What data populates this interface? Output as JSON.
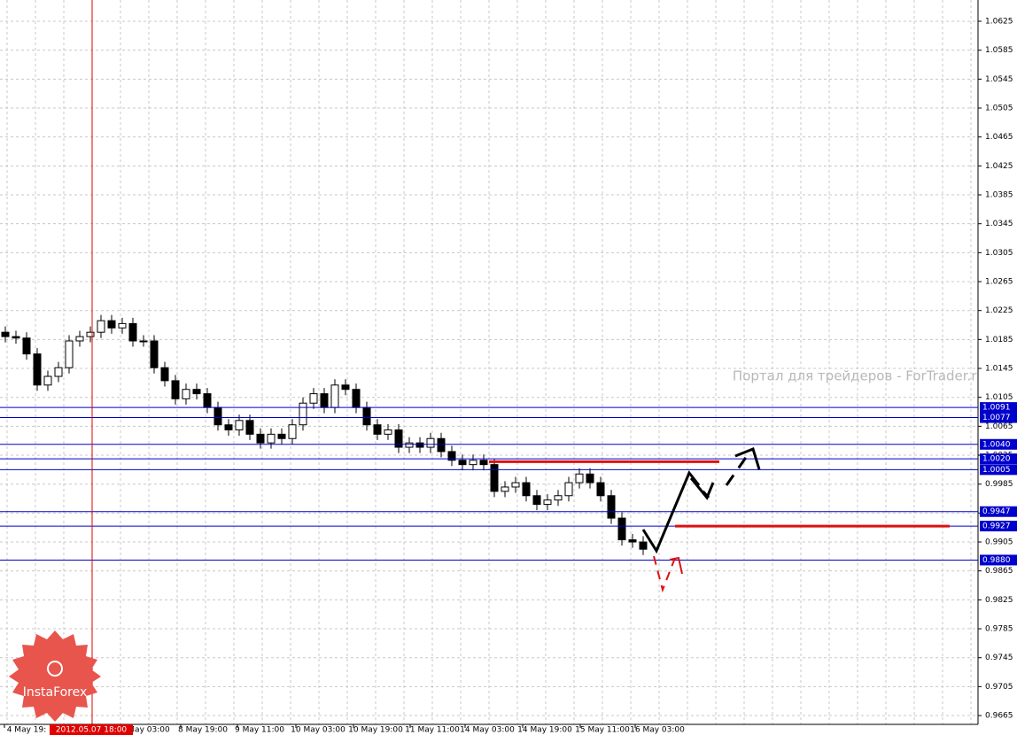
{
  "chart_data": {
    "type": "candlestick",
    "watermark": "Портал для трейдеров - ForTrader.ru",
    "logo": "InstaForex",
    "cursor_label": "2012.05.07 18:00",
    "x_labels": [
      "4 May 19:",
      "May 03:00",
      "8 May 19:00",
      "9 May 11:00",
      "10 May 03:00",
      "10 May 19:00",
      "11 May 11:00",
      "14 May 03:00",
      "14 May 19:00",
      "15 May 11:00",
      "16 May 03:00"
    ],
    "open": [
      1.0195,
      1.0189,
      1.0187,
      1.0165,
      1.0122,
      1.0134,
      1.0146,
      1.0183,
      1.0189,
      1.0195,
      1.0211,
      1.0201,
      1.0207,
      1.0183,
      1.0183,
      1.0146,
      1.0128,
      1.0103,
      1.0116,
      1.011,
      1.0091,
      1.0067,
      1.006,
      1.0073,
      1.0054,
      1.0042,
      1.0054,
      1.0048,
      1.0067,
      1.0097,
      1.011,
      1.0091,
      1.0122,
      1.0116,
      1.0091,
      1.0067,
      1.0054,
      1.006,
      1.0036,
      1.0042,
      1.0036,
      1.0048,
      1.003,
      1.0018,
      1.0012,
      1.0018,
      1.0012,
      0.9975,
      0.9981,
      0.9987,
      0.9969,
      0.9957,
      0.9963,
      0.9969,
      0.9987,
      0.9999,
      0.9987,
      0.9969,
      0.9938,
      0.9908,
      0.9905
    ],
    "high": [
      1.0203,
      1.0197,
      1.0195,
      1.0173,
      1.0142,
      1.0154,
      1.0191,
      1.0197,
      1.0203,
      1.0219,
      1.0219,
      1.0215,
      1.0215,
      1.0191,
      1.0191,
      1.0154,
      1.0136,
      1.0124,
      1.0124,
      1.0118,
      1.0099,
      1.0075,
      1.0081,
      1.0081,
      1.0062,
      1.0062,
      1.0062,
      1.0075,
      1.0105,
      1.0118,
      1.0118,
      1.013,
      1.013,
      1.0124,
      1.0099,
      1.0075,
      1.0068,
      1.0068,
      1.005,
      1.005,
      1.0056,
      1.0056,
      1.0038,
      1.0026,
      1.0026,
      1.0026,
      1.002,
      0.9989,
      0.9995,
      0.9995,
      0.9977,
      0.9971,
      0.9977,
      0.9995,
      1.0007,
      1.0007,
      0.9995,
      0.9977,
      0.9946,
      0.9916,
      0.9913
    ],
    "low": [
      1.0181,
      1.0179,
      1.0157,
      1.0114,
      1.0114,
      1.0126,
      1.0138,
      1.0175,
      1.0181,
      1.0187,
      1.0193,
      1.0193,
      1.0175,
      1.0175,
      1.0138,
      1.012,
      1.0095,
      1.0095,
      1.0102,
      1.0083,
      1.0059,
      1.0052,
      1.0052,
      1.0046,
      1.0034,
      1.0034,
      1.004,
      1.004,
      1.0059,
      1.0089,
      1.0083,
      1.0083,
      1.0108,
      1.0083,
      1.0059,
      1.0046,
      1.0046,
      1.0028,
      1.0028,
      1.0028,
      1.0028,
      1.0022,
      1.001,
      1.0004,
      1.0004,
      1.0004,
      0.9967,
      0.9967,
      0.9973,
      0.9961,
      0.9949,
      0.9949,
      0.9955,
      0.9961,
      0.9979,
      0.9979,
      0.9961,
      0.993,
      0.99,
      0.9897,
      0.9887
    ],
    "close": [
      1.0189,
      1.0187,
      1.0165,
      1.0122,
      1.0134,
      1.0146,
      1.0183,
      1.0189,
      1.0195,
      1.0211,
      1.0201,
      1.0207,
      1.0183,
      1.0183,
      1.0146,
      1.0128,
      1.0103,
      1.0116,
      1.011,
      1.0091,
      1.0067,
      1.006,
      1.0073,
      1.0054,
      1.0042,
      1.0054,
      1.0048,
      1.0067,
      1.0097,
      1.011,
      1.0091,
      1.0122,
      1.0116,
      1.0091,
      1.0067,
      1.0054,
      1.006,
      1.0036,
      1.0042,
      1.0036,
      1.0048,
      1.003,
      1.0018,
      1.0012,
      1.0018,
      1.0012,
      0.9975,
      0.9981,
      0.9987,
      0.9969,
      0.9957,
      0.9963,
      0.9969,
      0.9987,
      0.9999,
      0.9987,
      0.9969,
      0.9938,
      0.9908,
      0.9905,
      0.9895
    ],
    "ylim": [
      0.96528,
      1.06544
    ],
    "yticks": [
      1.0625,
      1.0585,
      1.0545,
      1.0505,
      1.0465,
      1.0425,
      1.0385,
      1.0345,
      1.0305,
      1.0265,
      1.0225,
      1.0185,
      1.0145,
      1.0105,
      1.0065,
      1.0025,
      0.9985,
      0.9945,
      0.9905,
      0.9865,
      0.9825,
      0.9785,
      0.9745,
      0.9705,
      0.9665
    ],
    "levels": [
      1.0091,
      1.0077,
      {
        "value": 1.004,
        "label": "1.0040"
      },
      {
        "value": 1.002,
        "label": "1.0020"
      },
      1.0005,
      0.9947,
      0.9927,
      {
        "value": 0.988,
        "label": "0.9880"
      }
    ],
    "level_color": "#0000cc",
    "red_levels": [
      1.0016,
      0.9927
    ],
    "red_color": "#dd1111",
    "grid": true
  }
}
